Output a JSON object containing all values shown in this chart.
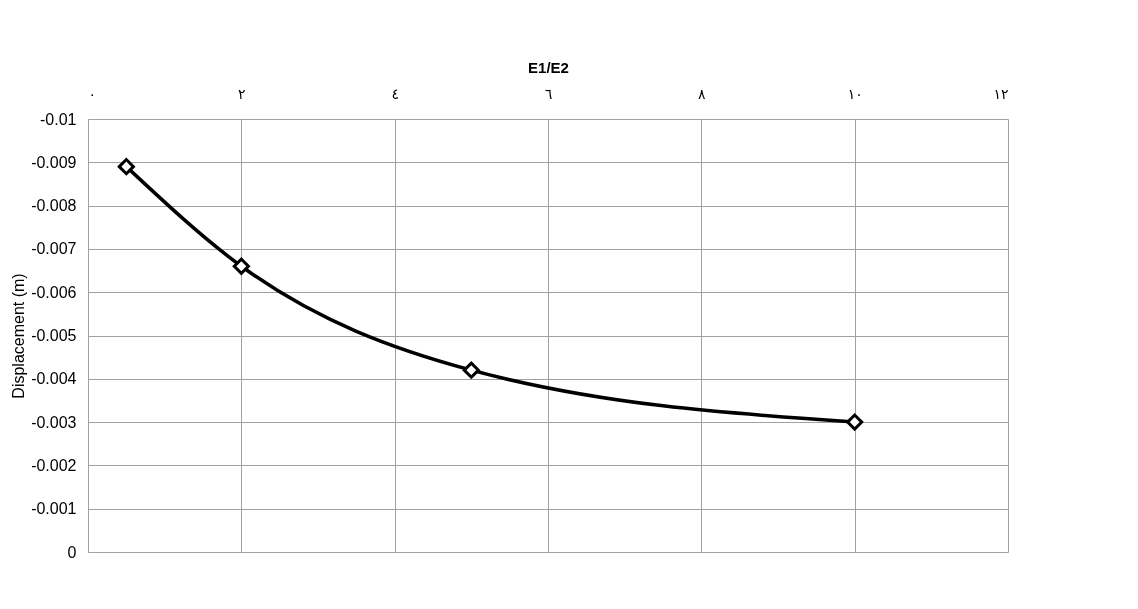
{
  "chart_data": {
    "type": "line",
    "xlabel": "E1/E2",
    "ylabel": "Displacement (m)",
    "x": [
      0.5,
      2,
      5,
      10
    ],
    "series": [
      {
        "color": "#000000",
        "values": [
          -0.0089,
          -0.0066,
          -0.0042,
          -0.003
        ]
      }
    ],
    "xlim": [
      0,
      12
    ],
    "xticks": [
      {
        "value": 0,
        "label": "٠"
      },
      {
        "value": 2,
        "label": "٢"
      },
      {
        "value": 4,
        "label": "٤"
      },
      {
        "value": 6,
        "label": "٦"
      },
      {
        "value": 8,
        "label": "٨"
      },
      {
        "value": 10,
        "label": "١٠"
      },
      {
        "value": 12,
        "label": "١٢"
      }
    ],
    "ylim": [
      0,
      -0.01
    ],
    "yticks": [
      -0.01,
      -0.009,
      -0.008,
      -0.007,
      -0.006,
      -0.005,
      -0.004,
      -0.003,
      -0.002,
      -0.001,
      0
    ],
    "grid": true,
    "marker": "diamond",
    "line_style": "solid"
  }
}
